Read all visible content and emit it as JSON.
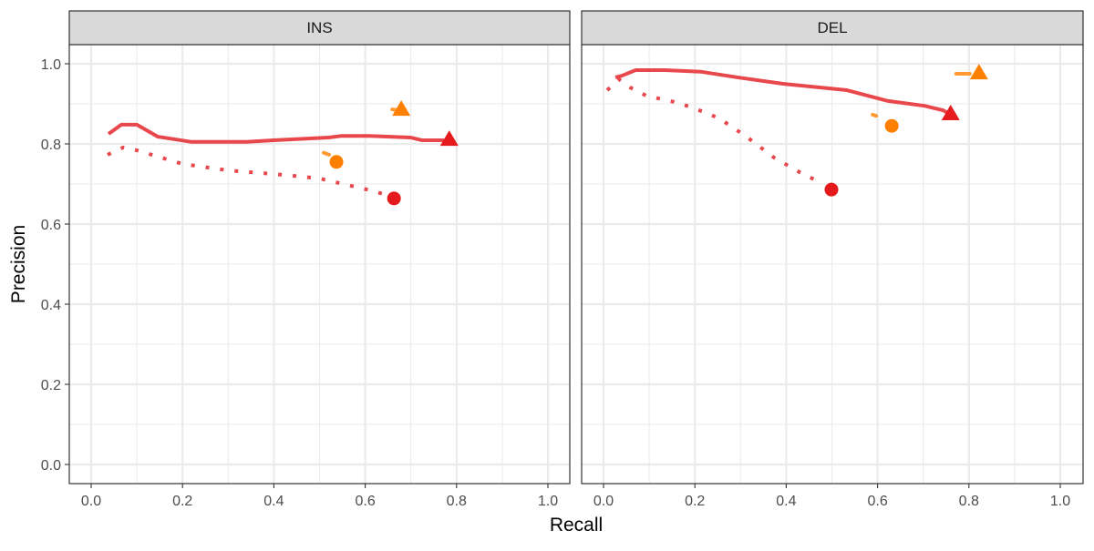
{
  "chart_data": {
    "type": "line",
    "xlabel": "Recall",
    "ylabel": "Precision",
    "xlim": [
      0,
      1
    ],
    "ylim": [
      0,
      1
    ],
    "xticks": [
      "0.0",
      "0.2",
      "0.4",
      "0.6",
      "0.8",
      "1.0"
    ],
    "yticks": [
      "0.0",
      "0.2",
      "0.4",
      "0.6",
      "0.8",
      "1.0"
    ],
    "grid": true,
    "colors": {
      "red": "#E41A1C",
      "orange": "#FF7F00"
    },
    "panels": [
      {
        "title": "INS",
        "series": [
          {
            "color": "red",
            "linetype": "solid",
            "marker": "triangle",
            "x": [
              0.038,
              0.066,
              0.1,
              0.146,
              0.22,
              0.34,
              0.4,
              0.52,
              0.549,
              0.609,
              0.699,
              0.725,
              0.769,
              0.783
            ],
            "y": [
              0.825,
              0.848,
              0.848,
              0.818,
              0.805,
              0.805,
              0.809,
              0.816,
              0.82,
              0.82,
              0.816,
              0.809,
              0.809,
              0.807
            ],
            "point": [
              0.784,
              0.811
            ]
          },
          {
            "color": "red",
            "linetype": "dotted",
            "marker": "circle",
            "x": [
              0.036,
              0.07,
              0.1,
              0.2,
              0.299,
              0.399,
              0.499,
              0.559,
              0.619,
              0.639
            ],
            "y": [
              0.773,
              0.791,
              0.784,
              0.75,
              0.734,
              0.725,
              0.714,
              0.698,
              0.682,
              0.675
            ],
            "point": [
              0.663,
              0.664
            ]
          },
          {
            "color": "orange",
            "linetype": "dotted",
            "marker": "circle",
            "x": [
              0.509,
              0.521
            ],
            "y": [
              0.778,
              0.773
            ],
            "point": [
              0.537,
              0.755
            ]
          },
          {
            "color": "orange",
            "linetype": "solid",
            "marker": "triangle",
            "x": [
              0.659,
              0.673
            ],
            "y": [
              0.886,
              0.884
            ],
            "point": [
              0.679,
              0.886
            ]
          }
        ]
      },
      {
        "title": "DEL",
        "series": [
          {
            "color": "red",
            "linetype": "solid",
            "marker": "triangle",
            "x": [
              0.026,
              0.04,
              0.07,
              0.134,
              0.214,
              0.293,
              0.393,
              0.473,
              0.533,
              0.623,
              0.703,
              0.743,
              0.757
            ],
            "y": [
              0.966,
              0.97,
              0.984,
              0.984,
              0.98,
              0.966,
              0.95,
              0.941,
              0.934,
              0.907,
              0.895,
              0.884,
              0.875
            ],
            "point": [
              0.76,
              0.875
            ]
          },
          {
            "color": "red",
            "linetype": "dotted",
            "marker": "circle",
            "x": [
              0.008,
              0.034,
              0.058,
              0.094,
              0.154,
              0.194,
              0.253,
              0.313,
              0.373,
              0.433,
              0.473
            ],
            "y": [
              0.934,
              0.961,
              0.941,
              0.92,
              0.905,
              0.891,
              0.864,
              0.818,
              0.766,
              0.727,
              0.705
            ],
            "point": [
              0.499,
              0.686
            ]
          },
          {
            "color": "orange",
            "linetype": "dotted",
            "marker": "circle",
            "x": [
              0.589,
              0.597
            ],
            "y": [
              0.873,
              0.87
            ],
            "point": [
              0.631,
              0.845
            ]
          },
          {
            "color": "orange",
            "linetype": "solid",
            "marker": "triangle",
            "x": [
              0.772,
              0.802
            ],
            "y": [
              0.975,
              0.975
            ],
            "point": [
              0.822,
              0.977
            ]
          }
        ]
      }
    ]
  }
}
